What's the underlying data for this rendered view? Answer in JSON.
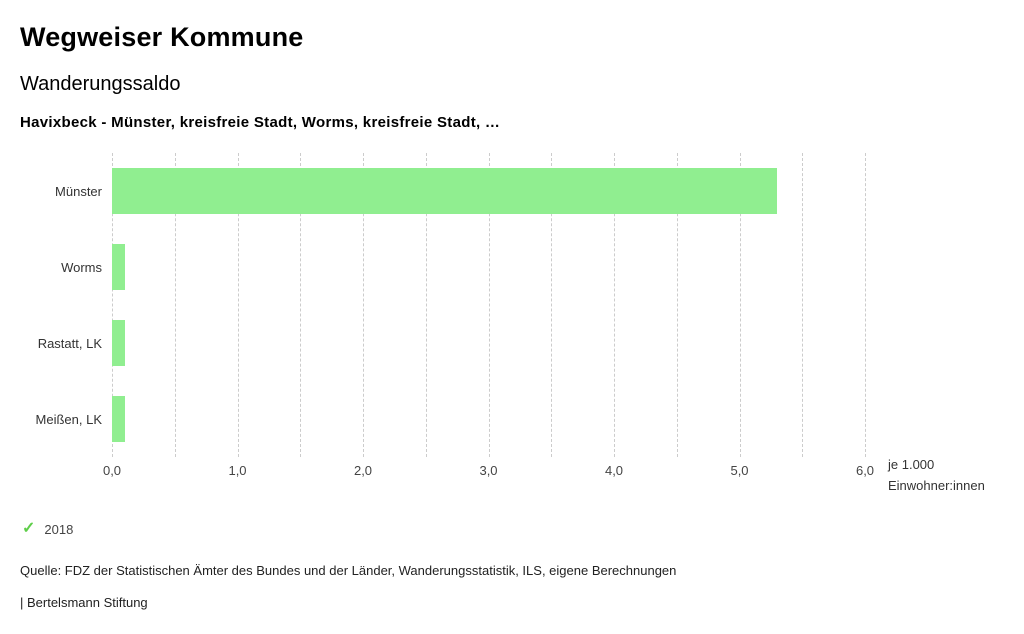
{
  "header": {
    "title": "Wegweiser Kommune",
    "subtitle": "Wanderungssaldo",
    "selection": "Havixbeck - Münster, kreisfreie Stadt, Worms, kreisfreie Stadt, …"
  },
  "chart_data": {
    "type": "bar",
    "orientation": "horizontal",
    "title": "Wanderungssaldo",
    "categories": [
      "Münster",
      "Worms",
      "Rastatt, LK",
      "Meißen, LK"
    ],
    "series": [
      {
        "name": "2018",
        "values": [
          5.3,
          0.1,
          0.1,
          0.1
        ]
      }
    ],
    "xlim": [
      0,
      6
    ],
    "x_tick_values": [
      0,
      1,
      2,
      3,
      4,
      5,
      6
    ],
    "x_tick_labels": [
      "0,0",
      "1,0",
      "2,0",
      "3,0",
      "4,0",
      "5,0",
      "6,0"
    ],
    "minor_grid_step": 0.5,
    "grid": "dashed-vertical",
    "xlabel_line1": "je 1.000",
    "xlabel_line2": "Einwohner:innen",
    "bar_color": "#90ee90",
    "grid_color": "#cccccc"
  },
  "legend": {
    "check_icon": "✓",
    "check_color": "#5fce4a",
    "year": "2018"
  },
  "footer": {
    "source": "Quelle: FDZ der Statistischen Ämter des Bundes und der Länder, Wanderungsstatistik, ILS, eigene Berechnungen",
    "attribution": "| Bertelsmann Stiftung"
  }
}
